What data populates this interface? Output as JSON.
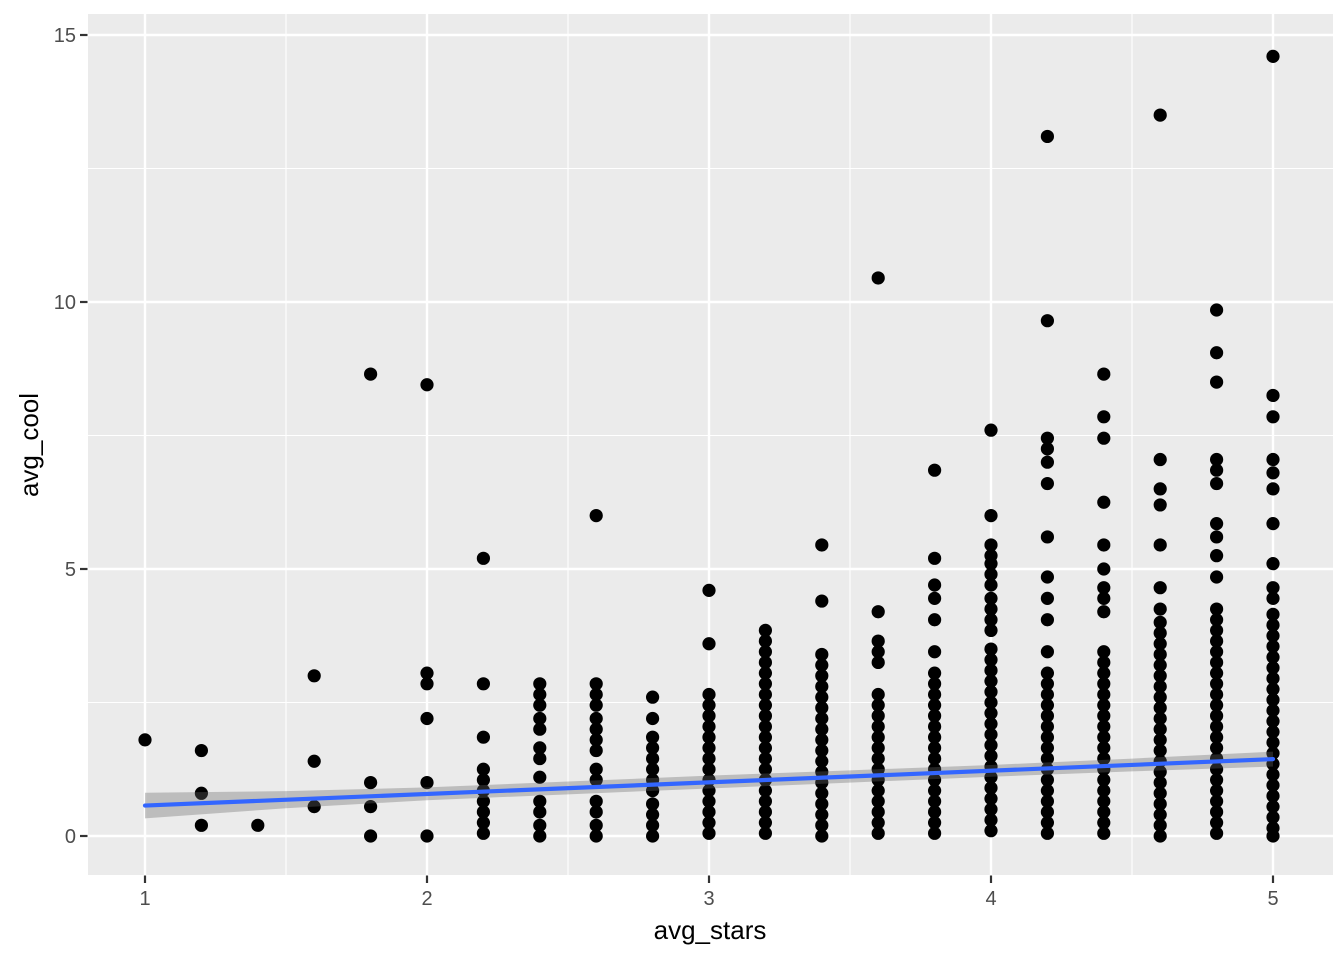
{
  "chart_data": {
    "type": "scatter",
    "title": "",
    "xlabel": "avg_stars",
    "ylabel": "avg_cool",
    "xlim": [
      0.8,
      5.21
    ],
    "ylim": [
      -0.73,
      15.39
    ],
    "x_ticks": [
      1,
      2,
      3,
      4,
      5
    ],
    "y_ticks": [
      0,
      5,
      10,
      15
    ],
    "x_minor_ticks": [
      1.5,
      2.5,
      3.5,
      4.5
    ],
    "y_minor_ticks": [
      2.5,
      7.5,
      12.5
    ],
    "grid": "on",
    "legend": "none",
    "theme": "ggplot-gray",
    "colors": {
      "panel_bg": "#EBEBEB",
      "grid": "#FFFFFF",
      "points": "#000000",
      "smooth_line": "#3366FF",
      "ci_band": "rgba(102,102,102,0.35)",
      "tick_marks": "#333333",
      "tick_labels": "#4D4D4D",
      "axis_titles": "#000000"
    },
    "columns": [
      {
        "x": 1.0,
        "y": [
          1.8
        ]
      },
      {
        "x": 1.2,
        "y": [
          1.6,
          0.8,
          0.2
        ]
      },
      {
        "x": 1.4,
        "y": [
          0.2
        ]
      },
      {
        "x": 1.6,
        "y": [
          3.0,
          1.4,
          0.55
        ]
      },
      {
        "x": 1.8,
        "y": [
          8.65,
          1.0,
          0.55,
          0.0
        ]
      },
      {
        "x": 2.0,
        "y": [
          8.45,
          3.05,
          2.85,
          2.2,
          1.0,
          0.0
        ]
      },
      {
        "x": 2.2,
        "y": [
          5.2,
          2.85,
          1.85,
          1.25,
          1.05,
          0.85,
          0.65,
          0.45,
          0.25,
          0.05
        ]
      },
      {
        "x": 2.4,
        "y": [
          2.85,
          2.65,
          2.45,
          2.2,
          2.0,
          1.65,
          1.45,
          1.1,
          0.65,
          0.45,
          0.2,
          0.0
        ]
      },
      {
        "x": 2.6,
        "y": [
          6.0,
          2.85,
          2.65,
          2.45,
          2.2,
          2.0,
          1.8,
          1.6,
          1.25,
          1.05,
          0.65,
          0.45,
          0.2,
          0.0
        ]
      },
      {
        "x": 2.8,
        "y": [
          2.6,
          2.2,
          1.85,
          1.65,
          1.45,
          1.25,
          1.05,
          0.85,
          0.6,
          0.4,
          0.2,
          0.0
        ]
      },
      {
        "x": 3.0,
        "y": [
          4.6,
          3.6,
          2.65,
          2.45,
          2.25,
          2.05,
          1.85,
          1.65,
          1.45,
          1.25,
          1.05,
          0.85,
          0.65,
          0.45,
          0.25,
          0.05
        ]
      },
      {
        "x": 3.2,
        "y": [
          3.85,
          3.65,
          3.45,
          3.25,
          3.05,
          2.85,
          2.65,
          2.45,
          2.25,
          2.05,
          1.85,
          1.65,
          1.45,
          1.25,
          1.05,
          0.85,
          0.65,
          0.45,
          0.25,
          0.05
        ]
      },
      {
        "x": 3.4,
        "y": [
          5.45,
          4.4,
          3.4,
          3.2,
          3.0,
          2.8,
          2.6,
          2.4,
          2.2,
          2.0,
          1.8,
          1.6,
          1.4,
          1.2,
          1.0,
          0.8,
          0.6,
          0.4,
          0.2,
          0.0
        ]
      },
      {
        "x": 3.6,
        "y": [
          10.45,
          4.2,
          3.65,
          3.45,
          3.25,
          2.65,
          2.45,
          2.25,
          2.05,
          1.85,
          1.65,
          1.45,
          1.25,
          1.05,
          0.85,
          0.65,
          0.45,
          0.25,
          0.05
        ]
      },
      {
        "x": 3.8,
        "y": [
          6.85,
          5.2,
          4.7,
          4.45,
          4.05,
          3.45,
          3.05,
          2.85,
          2.65,
          2.45,
          2.25,
          2.05,
          1.85,
          1.65,
          1.45,
          1.25,
          1.05,
          0.85,
          0.65,
          0.45,
          0.25,
          0.05
        ]
      },
      {
        "x": 4.0,
        "y": [
          7.6,
          6.0,
          5.45,
          5.25,
          5.1,
          4.9,
          4.7,
          4.45,
          4.25,
          4.05,
          3.85,
          3.5,
          3.3,
          3.1,
          2.9,
          2.7,
          2.5,
          2.3,
          2.1,
          1.9,
          1.7,
          1.5,
          1.3,
          1.1,
          0.9,
          0.7,
          0.5,
          0.3,
          0.1
        ]
      },
      {
        "x": 4.2,
        "y": [
          13.1,
          9.65,
          7.45,
          7.25,
          7.0,
          6.6,
          5.6,
          4.85,
          4.45,
          4.05,
          3.45,
          3.05,
          2.85,
          2.65,
          2.45,
          2.25,
          2.05,
          1.85,
          1.65,
          1.45,
          1.25,
          1.05,
          0.85,
          0.65,
          0.45,
          0.25,
          0.05
        ]
      },
      {
        "x": 4.4,
        "y": [
          8.65,
          7.85,
          7.45,
          6.25,
          5.45,
          5.0,
          4.65,
          4.45,
          4.2,
          3.45,
          3.25,
          3.05,
          2.85,
          2.65,
          2.45,
          2.25,
          2.05,
          1.85,
          1.65,
          1.45,
          1.25,
          1.05,
          0.85,
          0.65,
          0.45,
          0.25,
          0.05
        ]
      },
      {
        "x": 4.6,
        "y": [
          13.5,
          7.05,
          6.5,
          6.2,
          5.45,
          4.65,
          4.25,
          4.0,
          3.8,
          3.6,
          3.4,
          3.2,
          3.0,
          2.8,
          2.6,
          2.4,
          2.2,
          2.0,
          1.8,
          1.6,
          1.4,
          1.2,
          1.0,
          0.8,
          0.6,
          0.4,
          0.2,
          0.0
        ]
      },
      {
        "x": 4.8,
        "y": [
          9.85,
          9.05,
          8.5,
          7.05,
          6.85,
          6.6,
          5.85,
          5.6,
          5.25,
          4.85,
          4.25,
          4.05,
          3.85,
          3.65,
          3.45,
          3.25,
          3.05,
          2.85,
          2.65,
          2.45,
          2.25,
          2.05,
          1.85,
          1.65,
          1.45,
          1.25,
          1.05,
          0.85,
          0.65,
          0.45,
          0.25,
          0.05
        ]
      },
      {
        "x": 5.0,
        "y": [
          14.6,
          8.25,
          7.85,
          7.05,
          6.8,
          6.5,
          5.85,
          5.1,
          4.65,
          4.45,
          4.15,
          3.95,
          3.75,
          3.55,
          3.35,
          3.15,
          2.95,
          2.75,
          2.55,
          2.35,
          2.15,
          1.95,
          1.75,
          1.55,
          1.35,
          1.15,
          0.95,
          0.75,
          0.55,
          0.35,
          0.15,
          0.0
        ]
      }
    ],
    "smooth_line": {
      "x": [
        1,
        5
      ],
      "y": [
        0.57,
        1.44
      ]
    },
    "ci_band": {
      "x": [
        1.0,
        1.5,
        2.0,
        2.5,
        3.0,
        3.5,
        4.0,
        4.5,
        5.0
      ],
      "upper": [
        0.81,
        0.84,
        0.91,
        1.02,
        1.13,
        1.23,
        1.33,
        1.45,
        1.58
      ],
      "lower": [
        0.33,
        0.52,
        0.67,
        0.78,
        0.89,
        1.0,
        1.11,
        1.21,
        1.3
      ]
    }
  }
}
